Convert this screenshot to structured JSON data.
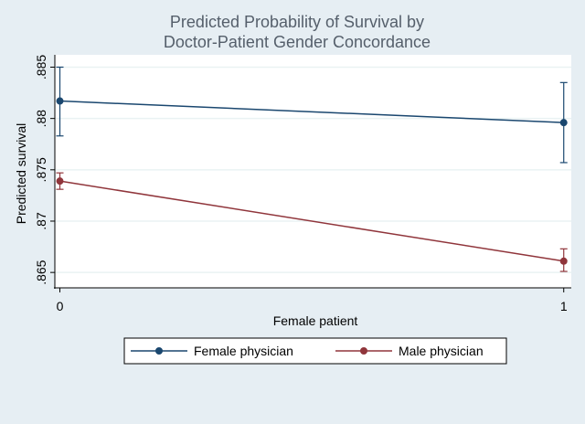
{
  "chart_data": {
    "type": "line",
    "title_lines": [
      "Predicted Probability of Survival by",
      "Doctor-Patient Gender Concordance"
    ],
    "xlabel": "Female patient",
    "ylabel": "Predicted survival",
    "x": [
      0,
      1
    ],
    "x_tick_labels": [
      "0",
      "1"
    ],
    "xlim": [
      -0.01,
      1.015
    ],
    "ylim": [
      0.8635,
      0.8862
    ],
    "y_ticks": [
      0.865,
      0.87,
      0.875,
      0.88,
      0.885
    ],
    "y_tick_labels": [
      ".865",
      ".87",
      ".875",
      ".88",
      ".885"
    ],
    "grid": true,
    "legend_position": "bottom",
    "series": [
      {
        "name": "Female physician",
        "color": "#1a476f",
        "values": [
          0.8817,
          0.8796
        ],
        "ci_low": [
          0.8783,
          0.8757
        ],
        "ci_high": [
          0.885,
          0.8835
        ]
      },
      {
        "name": "Male physician",
        "color": "#90353b",
        "values": [
          0.8739,
          0.8661
        ],
        "ci_low": [
          0.8731,
          0.8651
        ],
        "ci_high": [
          0.8747,
          0.8673
        ]
      }
    ]
  }
}
